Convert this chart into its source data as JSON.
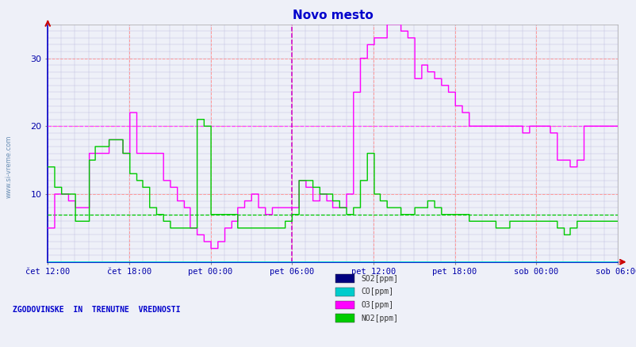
{
  "title": "Novo mesto",
  "title_color": "#0000cc",
  "fig_bg": "#eef0f8",
  "plot_bg": "#eef0f8",
  "colors": {
    "SO2": "#000080",
    "CO": "#00cccc",
    "O3": "#ff00ff",
    "NO2": "#00cc00"
  },
  "legend_labels": [
    "SO2[ppm]",
    "CO[ppm]",
    "O3[ppm]",
    "NO2[ppm]"
  ],
  "legend_colors": [
    "#000080",
    "#00cccc",
    "#ff00ff",
    "#00cc00"
  ],
  "xtick_labels": [
    "čet 12:00",
    "čet 18:00",
    "pet 00:00",
    "pet 06:00",
    "pet 12:00",
    "pet 18:00",
    "sob 00:00",
    "sob 06:00"
  ],
  "xtick_positions": [
    0,
    6,
    12,
    18,
    24,
    30,
    36,
    42
  ],
  "yticks": [
    10,
    20,
    30
  ],
  "ylim": [
    0,
    35
  ],
  "xlim": [
    0,
    42
  ],
  "vline_x": 18,
  "hline_o3": 20,
  "hline_no2": 7,
  "bottom_text": "ZGODOVINSKE  IN  TRENUTNE  VREDNOSTI",
  "watermark": "www.si-vreme.com",
  "o3_data": [
    [
      0,
      5
    ],
    [
      0.5,
      10
    ],
    [
      1.5,
      9
    ],
    [
      2,
      8
    ],
    [
      3,
      16
    ],
    [
      4.5,
      18
    ],
    [
      5.5,
      16
    ],
    [
      6,
      22
    ],
    [
      6.5,
      16
    ],
    [
      8.5,
      12
    ],
    [
      9,
      11
    ],
    [
      9.5,
      9
    ],
    [
      10,
      8
    ],
    [
      10.5,
      5
    ],
    [
      11,
      4
    ],
    [
      11.5,
      3
    ],
    [
      12,
      2
    ],
    [
      12.5,
      3
    ],
    [
      13,
      5
    ],
    [
      13.5,
      6
    ],
    [
      14,
      8
    ],
    [
      14.5,
      9
    ],
    [
      15,
      10
    ],
    [
      15.5,
      8
    ],
    [
      16,
      7
    ],
    [
      16.5,
      8
    ],
    [
      17.5,
      8
    ],
    [
      18,
      8
    ],
    [
      18.5,
      12
    ],
    [
      19,
      11
    ],
    [
      19.5,
      9
    ],
    [
      20,
      10
    ],
    [
      20.5,
      9
    ],
    [
      21,
      8
    ],
    [
      22,
      10
    ],
    [
      22.5,
      25
    ],
    [
      23,
      30
    ],
    [
      23.5,
      32
    ],
    [
      24,
      33
    ],
    [
      24.5,
      33
    ],
    [
      25,
      35
    ],
    [
      25.5,
      35
    ],
    [
      26,
      34
    ],
    [
      26.5,
      33
    ],
    [
      27,
      27
    ],
    [
      27.5,
      29
    ],
    [
      28,
      28
    ],
    [
      28.5,
      27
    ],
    [
      29,
      26
    ],
    [
      29.5,
      25
    ],
    [
      30,
      23
    ],
    [
      30.5,
      22
    ],
    [
      31,
      20
    ],
    [
      32,
      20
    ],
    [
      33,
      20
    ],
    [
      34,
      20
    ],
    [
      35,
      19
    ],
    [
      35.5,
      20
    ],
    [
      36,
      20
    ],
    [
      37,
      19
    ],
    [
      37.5,
      15
    ],
    [
      38.5,
      14
    ],
    [
      39,
      15
    ],
    [
      39.5,
      20
    ],
    [
      40,
      20
    ],
    [
      41,
      20
    ],
    [
      42,
      20
    ]
  ],
  "no2_data": [
    [
      0,
      14
    ],
    [
      0.5,
      11
    ],
    [
      1,
      10
    ],
    [
      2,
      6
    ],
    [
      3,
      15
    ],
    [
      3.5,
      17
    ],
    [
      4.5,
      18
    ],
    [
      5.5,
      16
    ],
    [
      6,
      13
    ],
    [
      6.5,
      12
    ],
    [
      7,
      11
    ],
    [
      7.5,
      8
    ],
    [
      8,
      7
    ],
    [
      8.5,
      6
    ],
    [
      9,
      5
    ],
    [
      10.5,
      5
    ],
    [
      11,
      21
    ],
    [
      11.5,
      20
    ],
    [
      12,
      7
    ],
    [
      13,
      7
    ],
    [
      14,
      5
    ],
    [
      17,
      5
    ],
    [
      17.5,
      6
    ],
    [
      18,
      7
    ],
    [
      18.5,
      12
    ],
    [
      19,
      12
    ],
    [
      19.5,
      11
    ],
    [
      20,
      10
    ],
    [
      21,
      9
    ],
    [
      21.5,
      8
    ],
    [
      22,
      7
    ],
    [
      22.5,
      8
    ],
    [
      23,
      12
    ],
    [
      23.5,
      16
    ],
    [
      24,
      10
    ],
    [
      24.5,
      9
    ],
    [
      25,
      8
    ],
    [
      26,
      7
    ],
    [
      27,
      8
    ],
    [
      28,
      9
    ],
    [
      28.5,
      8
    ],
    [
      29,
      7
    ],
    [
      30,
      7
    ],
    [
      31,
      6
    ],
    [
      32,
      6
    ],
    [
      33,
      5
    ],
    [
      34,
      6
    ],
    [
      35,
      6
    ],
    [
      36,
      6
    ],
    [
      37,
      6
    ],
    [
      37.5,
      5
    ],
    [
      38,
      4
    ],
    [
      38.5,
      5
    ],
    [
      39,
      6
    ],
    [
      40,
      6
    ],
    [
      41,
      6
    ],
    [
      42,
      6
    ]
  ],
  "so2_data": [
    [
      0,
      0
    ],
    [
      42,
      0
    ]
  ],
  "co_data": [
    [
      0,
      0
    ],
    [
      42,
      0
    ]
  ]
}
